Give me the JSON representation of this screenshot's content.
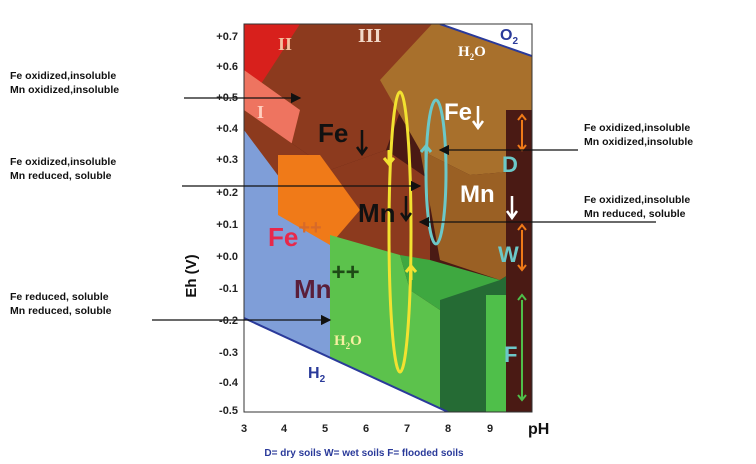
{
  "axes": {
    "y_label": "Eh (V)",
    "x_label": "pH",
    "y_ticks": [
      "+0.7",
      "+0.6",
      "+0.5",
      "+0.4",
      "+0.3",
      "+0.2",
      "+0.1",
      "+0.0",
      "-0.1",
      "-0.2",
      "-0.3",
      "-0.4",
      "-0.5"
    ],
    "x_ticks": [
      "3",
      "4",
      "5",
      "6",
      "7",
      "8",
      "9"
    ]
  },
  "regions": {
    "roman_I": "I",
    "roman_II": "II",
    "roman_III": "III",
    "o2_label": "O",
    "o2_sub": "2",
    "h2o_upper": "H",
    "h2o_upper_sub": "2",
    "h2o_upper_tail": "O",
    "h2o_lower": "H",
    "h2o_lower_sub": "2",
    "h2o_lower_tail": "O",
    "h2_label": "H",
    "h2_sub": "2"
  },
  "species": {
    "fe_down_left": "Fe",
    "mn_down_left": "Mn",
    "fe_down_right": "Fe",
    "mn_down_right": "Mn",
    "fe_plus": "Fe",
    "fe_plus_sup": "++",
    "mn_plus": "Mn",
    "mn_plus_sup": "++"
  },
  "soil_codes": {
    "d": "D",
    "w": "W",
    "f": "F"
  },
  "annotations": {
    "left_top_1": "Fe oxidized,insoluble",
    "left_top_2": "Mn oxidized,insoluble",
    "left_mid_1": "Fe  oxidized,insoluble",
    "left_mid_2": "Mn reduced, soluble",
    "left_bot_1": "Fe reduced, soluble",
    "left_bot_2": "Mn reduced, soluble",
    "right_top_1": "Fe oxidized,insoluble",
    "right_top_2": "Mn oxidized,insoluble",
    "right_mid_1": "Fe  oxidized,insoluble",
    "right_mid_2": "Mn reduced, soluble"
  },
  "legend": "D= dry soils   W= wet soils   F= flooded soils",
  "colors": {
    "dark_maroon": "#4a1a14",
    "brown": "#8c3a1e",
    "red": "#d8201c",
    "salmon": "#ee7460",
    "blue": "#7f9ed8",
    "orange": "#f07a18",
    "tan": "#a8702c",
    "light_green": "#5cc24c",
    "green": "#3ea840",
    "dark_green": "#256b34",
    "yellow_cycle": "#f2e230",
    "teal_cycle": "#6cc8c8"
  }
}
